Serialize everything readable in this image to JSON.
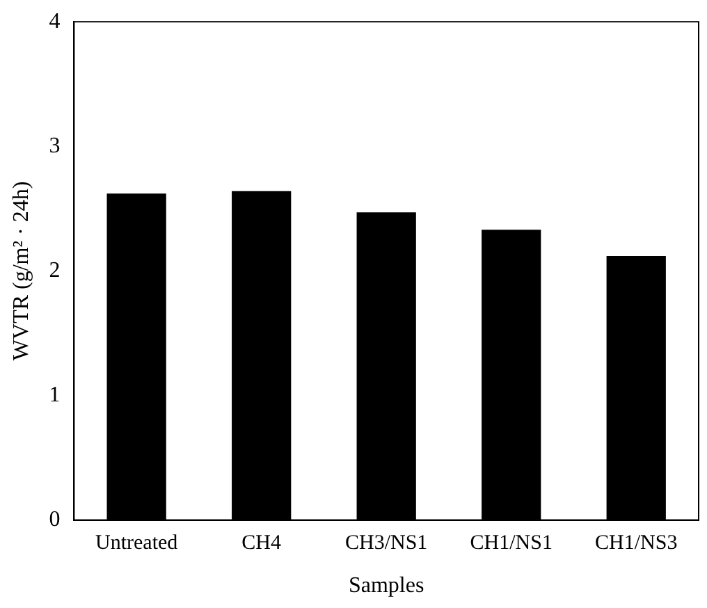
{
  "chart_data": {
    "type": "bar",
    "xlabel": "Samples",
    "ylabel": "WVTR (g/m² · 24h)",
    "categories": [
      "Untreated",
      "CH4",
      "CH3/NS1",
      "CH1/NS1",
      "CH1/NS3"
    ],
    "values": [
      2.62,
      2.64,
      2.47,
      2.33,
      2.12
    ],
    "color": "#000000",
    "ylim": [
      0,
      4
    ],
    "yticks": [
      0,
      1,
      2,
      3,
      4
    ],
    "grid": false,
    "legend": false
  }
}
